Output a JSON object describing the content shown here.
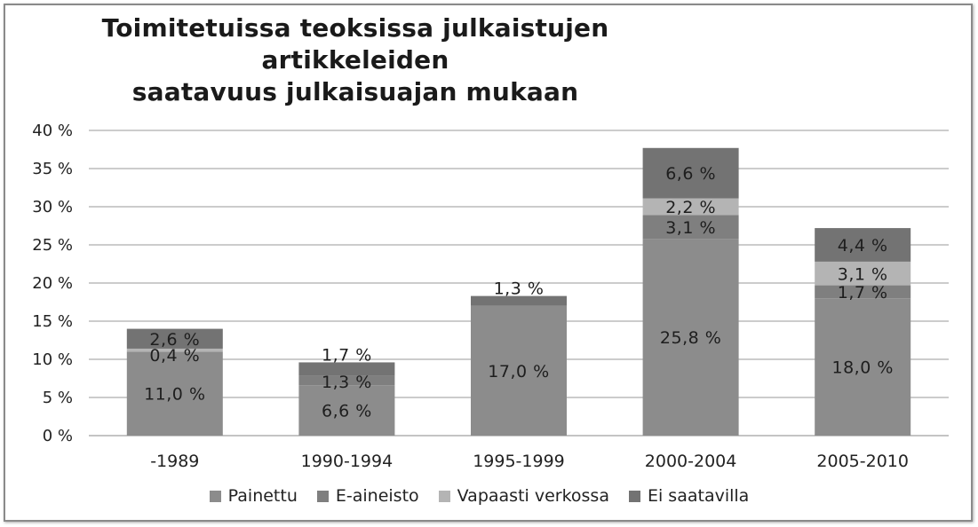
{
  "chart_data": {
    "type": "bar",
    "stacked": true,
    "title_lines": [
      "Toimitetuissa teoksissa julkaistujen",
      "artikkeleiden",
      "saatavuus julkaisuajan  mukaan"
    ],
    "categories": [
      "-1989",
      "1990-1994",
      "1995-1999",
      "2000-2004",
      "2005-2010"
    ],
    "series": [
      {
        "name": "Painettu",
        "color": "#8c8c8c",
        "values": [
          11.0,
          6.6,
          17.0,
          25.8,
          18.0
        ]
      },
      {
        "name": "E-aineisto",
        "color": "#7f7f7f",
        "values": [
          0.0,
          1.3,
          0.0,
          3.1,
          1.7
        ]
      },
      {
        "name": "Vapaasti verkossa",
        "color": "#b4b4b4",
        "values": [
          0.4,
          0.0,
          0.0,
          2.2,
          3.1
        ]
      },
      {
        "name": "Ei saatavilla",
        "color": "#737373",
        "values": [
          2.6,
          1.7,
          1.3,
          6.6,
          4.4
        ]
      }
    ],
    "data_labels": [
      [
        "11,0 %",
        "",
        "0,4 %",
        "2,6 %"
      ],
      [
        "6,6 %",
        "1,3 %",
        "",
        "1,7 %"
      ],
      [
        "17,0 %",
        "",
        "",
        "1,3 %"
      ],
      [
        "25,8 %",
        "3,1 %",
        "2,2 %",
        "6,6 %"
      ],
      [
        "18,0 %",
        "1,7 %",
        "3,1 %",
        "4,4 %"
      ]
    ],
    "y_ticks": [
      "0 %",
      "5 %",
      "10 %",
      "15 %",
      "20 %",
      "25 %",
      "30 %",
      "35 %",
      "40 %"
    ],
    "ylim": [
      0,
      40
    ],
    "grid": true,
    "legend_position": "bottom"
  }
}
